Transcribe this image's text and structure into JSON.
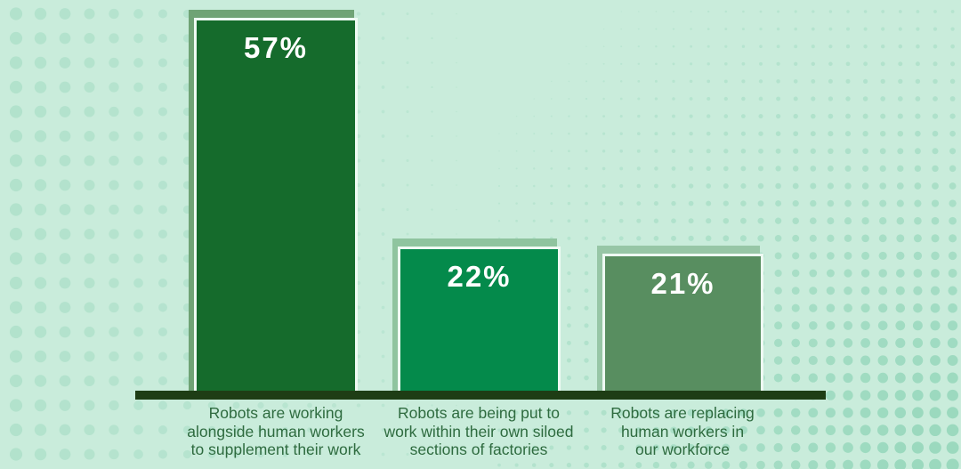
{
  "chart_data": {
    "type": "bar",
    "title": "",
    "xlabel": "",
    "ylabel": "",
    "categories": [
      "Robots are working alongside human workers to supplement their work",
      "Robots are being put to work within their own siloed sections of factories",
      "Robots are replacing human workers in our workforce"
    ],
    "values": [
      57,
      22,
      21
    ],
    "value_labels": [
      "57%",
      "22%",
      "21%"
    ],
    "ylim": [
      0,
      60
    ],
    "grid": false,
    "legend": "none",
    "style": "infographic bars with offset backing shadow on dotted mint background"
  },
  "bars": [
    {
      "value": 57,
      "value_label": "57%",
      "label": "Robots are working\nalongside human workers\nto supplement their work",
      "fill": "#156b2c",
      "backing": "#6fa375"
    },
    {
      "value": 22,
      "value_label": "22%",
      "label": "Robots are being put to\nwork within their own siloed\nsections of factories",
      "fill": "#048a4b",
      "backing": "#8fc49f"
    },
    {
      "value": 21,
      "value_label": "21%",
      "label": "Robots are replacing\nhuman workers in\nour workforce",
      "fill": "#588e60",
      "backing": "#97c6a6"
    }
  ],
  "colors": {
    "background": "#c9ecdb",
    "dot_left": "#b2e2cc",
    "dot_right": "#99d8bd",
    "bar_stroke": "#eefaf3",
    "axis": "#1e3d15",
    "label_text": "#2e6b3f",
    "value_text": "#ffffff"
  }
}
